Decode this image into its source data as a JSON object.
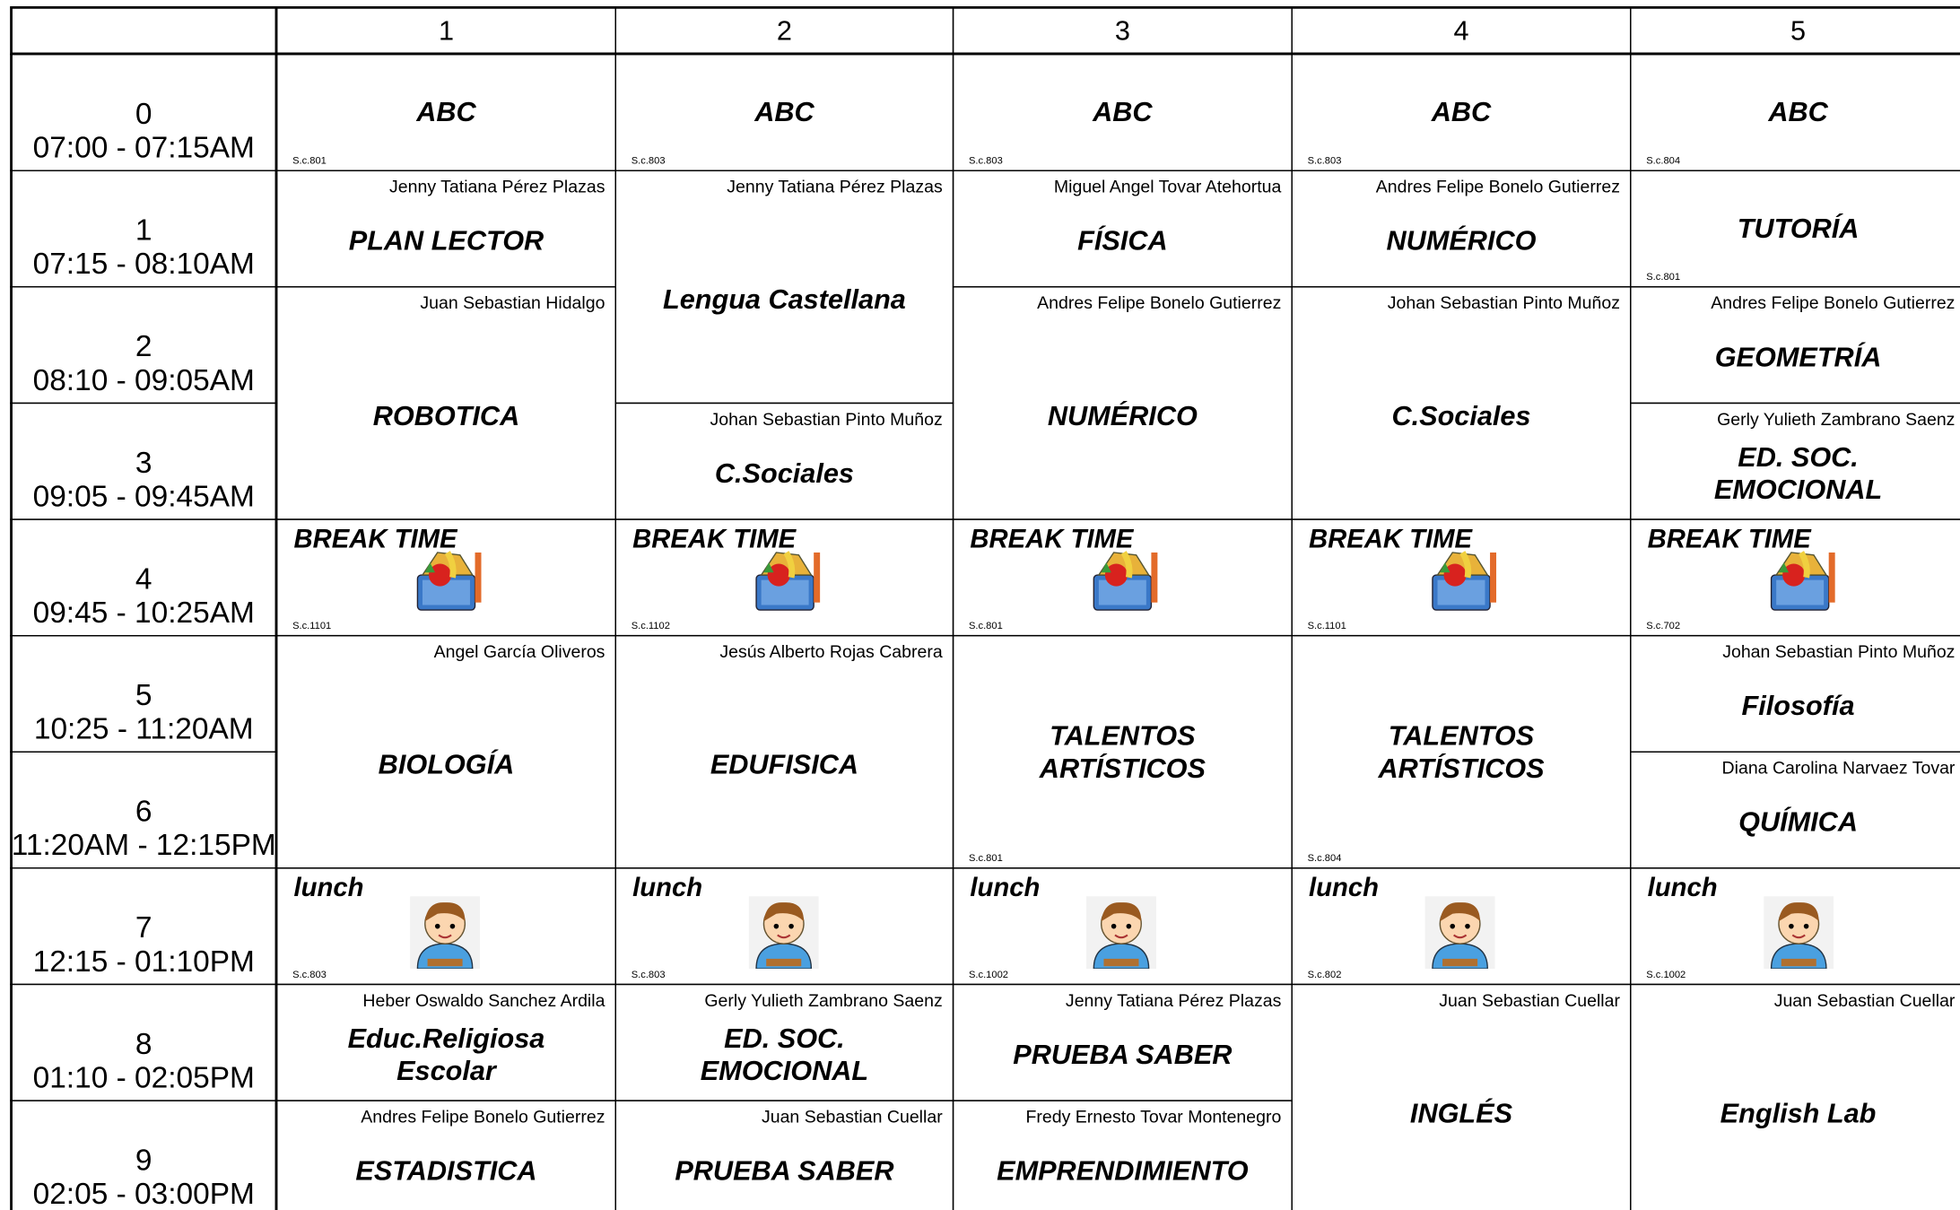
{
  "header": {
    "columns": [
      "1",
      "2",
      "3",
      "4",
      "5"
    ]
  },
  "periods": [
    {
      "number": "0",
      "time": "07:00 - 07:15AM"
    },
    {
      "number": "1",
      "time": "07:15 - 08:10AM"
    },
    {
      "number": "2",
      "time": "08:10 - 09:05AM"
    },
    {
      "number": "3",
      "time": "09:05 - 09:45AM"
    },
    {
      "number": "4",
      "time": "09:45 - 10:25AM"
    },
    {
      "number": "5",
      "time": "10:25 - 11:20AM"
    },
    {
      "number": "6",
      "time": "11:20AM - 12:15PM"
    },
    {
      "number": "7",
      "time": "12:15 - 01:10PM"
    },
    {
      "number": "8",
      "time": "01:10 - 02:05PM"
    },
    {
      "number": "9",
      "time": "02:05 - 03:00PM"
    }
  ],
  "days": [
    {
      "cells": [
        {
          "subject": "ABC",
          "room": "S.c.801"
        },
        {
          "teacher": "Jenny Tatiana Pérez Plazas",
          "subject": "PLAN LECTOR"
        },
        {
          "teacher": "Juan Sebastian Hidalgo",
          "subject": "ROBOTICA"
        },
        {
          "subject": "BREAK TIME",
          "room": "S.c.1101"
        },
        {
          "teacher": "Angel García Oliveros",
          "subject": "BIOLOGÍA"
        },
        {
          "subject": "lunch",
          "room": "S.c.803"
        },
        {
          "teacher": "Heber Oswaldo Sanchez Ardila",
          "subject": "Educ.Religiosa Escolar"
        },
        {
          "teacher": "Andres Felipe Bonelo Gutierrez",
          "subject": "ESTADISTICA"
        }
      ]
    },
    {
      "cells": [
        {
          "subject": "ABC",
          "room": "S.c.803"
        },
        {
          "teacher": "Jenny Tatiana Pérez Plazas",
          "subject": "Lengua Castellana"
        },
        {
          "teacher": "Johan Sebastian Pinto Muñoz",
          "subject": "C.Sociales"
        },
        {
          "subject": "BREAK TIME",
          "room": "S.c.1102"
        },
        {
          "teacher": "Jesús Alberto Rojas Cabrera",
          "subject": "EDUFISICA"
        },
        {
          "subject": "lunch",
          "room": "S.c.803"
        },
        {
          "teacher": "Gerly Yulieth Zambrano Saenz",
          "subject": "ED. SOC. EMOCIONAL"
        },
        {
          "teacher": "Juan Sebastian Cuellar",
          "subject": "PRUEBA SABER"
        }
      ]
    },
    {
      "cells": [
        {
          "subject": "ABC",
          "room": "S.c.803"
        },
        {
          "teacher": "Miguel Angel Tovar Atehortua",
          "subject": "FÍSICA"
        },
        {
          "teacher": "Andres Felipe Bonelo Gutierrez",
          "subject": "NUMÉRICO"
        },
        {
          "subject": "BREAK TIME",
          "room": "S.c.801"
        },
        {
          "subject": "TALENTOS ARTÍSTICOS",
          "room": "S.c.801"
        },
        {
          "subject": "lunch",
          "room": "S.c.1002"
        },
        {
          "teacher": "Jenny Tatiana Pérez Plazas",
          "subject": "PRUEBA SABER"
        },
        {
          "teacher": "Fredy Ernesto Tovar Montenegro",
          "subject": "EMPRENDIMIENTO"
        }
      ]
    },
    {
      "cells": [
        {
          "subject": "ABC",
          "room": "S.c.803"
        },
        {
          "teacher": "Andres Felipe Bonelo Gutierrez",
          "subject": "NUMÉRICO"
        },
        {
          "teacher": "Johan Sebastian Pinto Muñoz",
          "subject": "C.Sociales"
        },
        {
          "subject": "BREAK TIME",
          "room": "S.c.1101"
        },
        {
          "subject": "TALENTOS ARTÍSTICOS",
          "room": "S.c.804"
        },
        {
          "subject": "lunch",
          "room": "S.c.802"
        },
        {
          "teacher": "Juan Sebastian Cuellar",
          "subject": "INGLÉS"
        }
      ]
    },
    {
      "cells": [
        {
          "subject": "ABC",
          "room": "S.c.804"
        },
        {
          "subject": "TUTORÍA",
          "room": "S.c.801"
        },
        {
          "teacher": "Andres Felipe Bonelo Gutierrez",
          "subject": "GEOMETRÍA"
        },
        {
          "teacher": "Gerly Yulieth Zambrano Saenz",
          "subject": "ED. SOC. EMOCIONAL"
        },
        {
          "subject": "BREAK TIME",
          "room": "S.c.702"
        },
        {
          "teacher": "Johan Sebastian Pinto Muñoz",
          "subject": "Filosofía"
        },
        {
          "teacher": "Diana Carolina Narvaez Tovar",
          "subject": "QUÍMICA"
        },
        {
          "subject": "lunch",
          "room": "S.c.1002"
        },
        {
          "teacher": "Juan Sebastian Cuellar",
          "subject": "English Lab"
        }
      ]
    }
  ]
}
